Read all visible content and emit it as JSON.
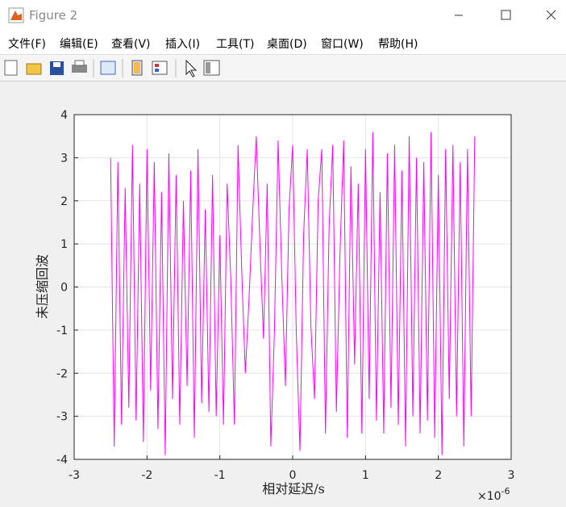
{
  "window": {
    "title": "Figure 2",
    "menu": [
      "文件(F)",
      "编辑(E)",
      "查看(V)",
      "插入(I)",
      "工具(T)",
      "桌面(D)",
      "窗口(W)",
      "帮助(H)"
    ]
  },
  "chart_data": {
    "type": "line",
    "x_label": "相对延迟/s",
    "y_label": "未压缩回波",
    "x_exponent_base": "×10",
    "x_exponent_power": "-6",
    "xlim": [
      -3,
      3
    ],
    "xticks": [
      -3,
      -2,
      -1,
      0,
      1,
      2,
      3
    ],
    "ylim": [
      -4,
      4
    ],
    "yticks": [
      -4,
      -3,
      -2,
      -1,
      0,
      1,
      2,
      3,
      4
    ],
    "grid": true,
    "color": "#ff00ff",
    "x": [
      -2.5,
      -2.45,
      -2.4,
      -2.35,
      -2.3,
      -2.25,
      -2.2,
      -2.15,
      -2.1,
      -2.05,
      -2.0,
      -1.95,
      -1.9,
      -1.85,
      -1.8,
      -1.75,
      -1.7,
      -1.65,
      -1.6,
      -1.55,
      -1.5,
      -1.45,
      -1.4,
      -1.35,
      -1.3,
      -1.25,
      -1.2,
      -1.15,
      -1.1,
      -1.05,
      -1.0,
      -0.95,
      -0.9,
      -0.85,
      -0.8,
      -0.75,
      -0.7,
      -0.65,
      -0.6,
      -0.55,
      -0.5,
      -0.45,
      -0.4,
      -0.35,
      -0.3,
      -0.25,
      -0.2,
      -0.15,
      -0.1,
      -0.05,
      0.0,
      0.05,
      0.1,
      0.15,
      0.2,
      0.25,
      0.3,
      0.35,
      0.4,
      0.45,
      0.5,
      0.55,
      0.6,
      0.65,
      0.7,
      0.75,
      0.8,
      0.85,
      0.9,
      0.95,
      1.0,
      1.05,
      1.1,
      1.15,
      1.2,
      1.25,
      1.3,
      1.35,
      1.4,
      1.45,
      1.5,
      1.55,
      1.6,
      1.65,
      1.7,
      1.75,
      1.8,
      1.85,
      1.9,
      1.95,
      2.0,
      2.05,
      2.1,
      2.15,
      2.2,
      2.25,
      2.3,
      2.35,
      2.4,
      2.45,
      2.5
    ],
    "values": [
      3.0,
      -3.7,
      2.9,
      -3.2,
      2.3,
      -2.8,
      3.3,
      -3.1,
      2.4,
      -3.6,
      3.2,
      -2.4,
      2.9,
      -3.3,
      2.2,
      -3.9,
      3.1,
      -2.6,
      2.6,
      -3.2,
      2.0,
      -2.3,
      2.7,
      -3.5,
      3.2,
      -2.7,
      1.8,
      -2.9,
      2.6,
      -3.0,
      1.2,
      -3.2,
      2.4,
      0.2,
      -3.2,
      3.3,
      0.4,
      -2.0,
      -0.3,
      1.7,
      3.5,
      1.0,
      -1.2,
      2.4,
      -3.7,
      -1.0,
      3.4,
      0.3,
      -2.3,
      1.8,
      3.3,
      -1.1,
      -3.8,
      1.2,
      3.2,
      -0.9,
      -2.6,
      2.0,
      3.2,
      -3.4,
      1.4,
      3.3,
      -2.9,
      0.8,
      3.4,
      -3.5,
      2.8,
      -1.8,
      2.4,
      -3.4,
      3.2,
      -2.6,
      3.6,
      -3.1,
      2.2,
      -3.4,
      3.1,
      -2.8,
      3.3,
      -3.2,
      2.7,
      -3.7,
      3.5,
      -3.0,
      3.0,
      -3.4,
      2.9,
      -3.1,
      3.6,
      -3.5,
      2.6,
      -3.9,
      3.2,
      -2.6,
      3.3,
      -3.0,
      2.9,
      -3.7,
      3.2,
      -3.0,
      3.5
    ]
  }
}
